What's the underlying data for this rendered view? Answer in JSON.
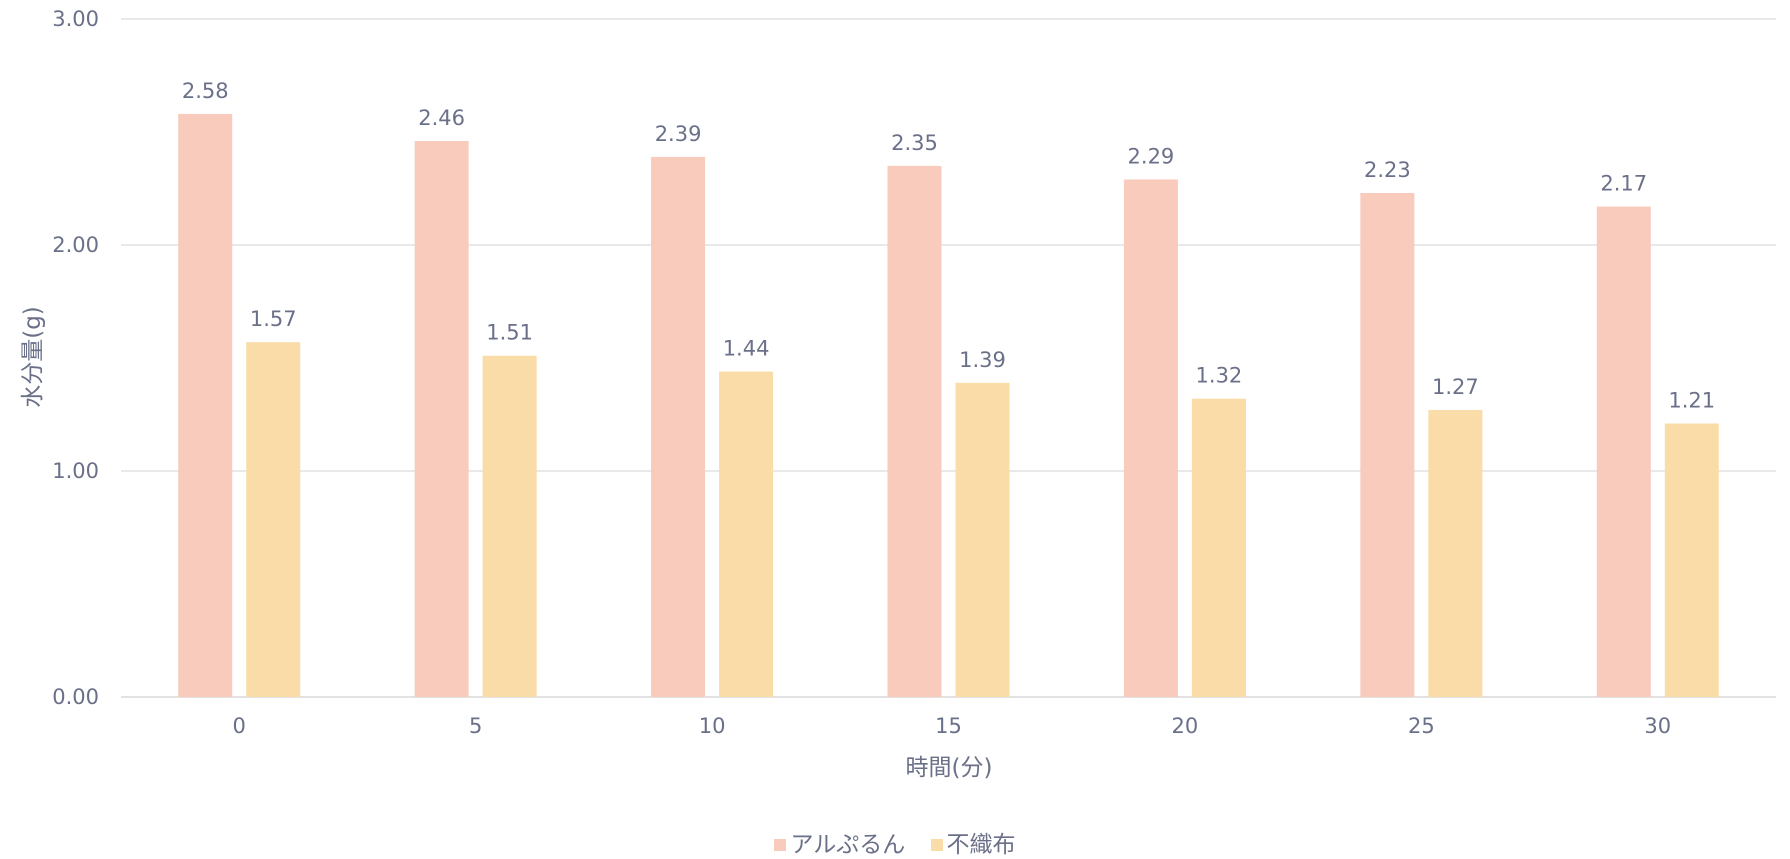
{
  "chart_data": {
    "type": "bar",
    "categories": [
      "0",
      "5",
      "10",
      "15",
      "20",
      "25",
      "30"
    ],
    "series": [
      {
        "name": "アルぷるん",
        "values": [
          2.58,
          2.46,
          2.39,
          2.35,
          2.29,
          2.23,
          2.17
        ],
        "color": "#f8cbbc"
      },
      {
        "name": "不織布",
        "values": [
          1.57,
          1.51,
          1.44,
          1.39,
          1.32,
          1.27,
          1.21
        ],
        "color": "#fadca8"
      }
    ],
    "xlabel": "時間(分)",
    "ylabel": "水分量(g)",
    "ylim": [
      0,
      3
    ],
    "yticks": [
      "0.00",
      "1.00",
      "2.00",
      "3.00"
    ],
    "grid": true,
    "legend_position": "bottom"
  }
}
